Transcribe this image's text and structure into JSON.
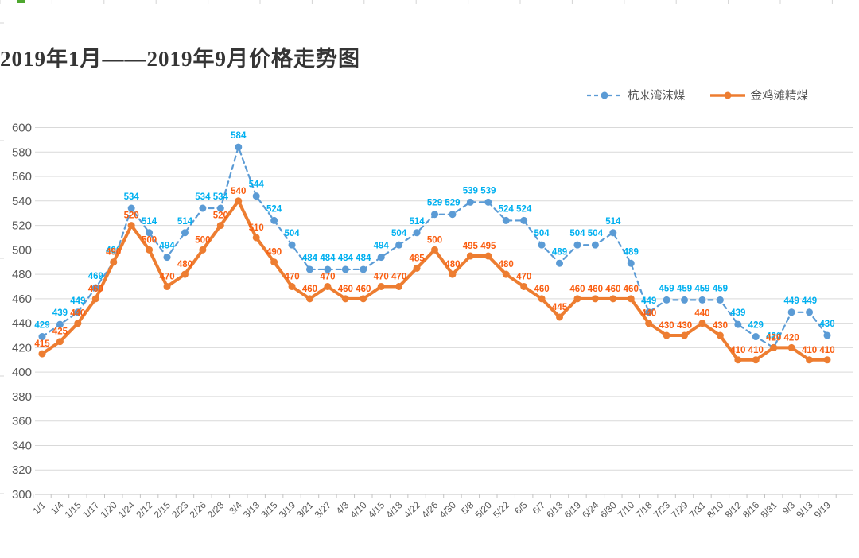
{
  "title": "2019年1月——2019年9月价格走势图",
  "legend": {
    "items": [
      {
        "label": "杭来湾沫煤",
        "color": "#5B9BD5",
        "style": "dashed"
      },
      {
        "label": "金鸡滩精煤",
        "color": "#ED7D31",
        "style": "solid"
      }
    ]
  },
  "chart_data": {
    "type": "line",
    "title": "2019年1月——2019年9月价格走势图",
    "xlabel": "",
    "ylabel": "",
    "ylim": [
      300,
      600
    ],
    "yticks": [
      600,
      580,
      560,
      540,
      520,
      500,
      480,
      460,
      440,
      420,
      400,
      380,
      360,
      340,
      320,
      300
    ],
    "grid": true,
    "legend_position": "top-right",
    "categories": [
      "1/1",
      "1/4",
      "1/15",
      "1/17",
      "1/20",
      "1/24",
      "2/12",
      "2/15",
      "2/23",
      "2/26",
      "2/28",
      "3/4",
      "3/13",
      "3/15",
      "3/19",
      "3/21",
      "3/27",
      "4/3",
      "4/10",
      "4/15",
      "4/18",
      "4/22",
      "4/26",
      "4/30",
      "5/8",
      "5/20",
      "5/22",
      "6/5",
      "6/7",
      "6/13",
      "6/19",
      "6/24",
      "6/30",
      "7/10",
      "7/18",
      "7/23",
      "7/29",
      "7/31",
      "8/10",
      "8/12",
      "8/16",
      "8/31",
      "9/3",
      "9/13",
      "9/19"
    ],
    "series": [
      {
        "name": "杭来湾沫煤",
        "line_style": "dashed",
        "color": "#5B9BD5",
        "label_color": "#00B0F0",
        "values": [
          429,
          439,
          449,
          469,
          490,
          534,
          514,
          494,
          514,
          534,
          534,
          584,
          544,
          524,
          504,
          484,
          484,
          484,
          484,
          494,
          504,
          514,
          529,
          529,
          539,
          539,
          524,
          524,
          504,
          489,
          504,
          504,
          514,
          489,
          449,
          459,
          459,
          459,
          459,
          439,
          429,
          420,
          449,
          449,
          430
        ]
      },
      {
        "name": "金鸡滩精煤",
        "line_style": "solid",
        "color": "#ED7D31",
        "label_color": "#FA5D0F",
        "values": [
          415,
          425,
          440,
          460,
          490,
          520,
          500,
          470,
          480,
          500,
          520,
          540,
          510,
          490,
          470,
          460,
          470,
          460,
          460,
          470,
          470,
          485,
          500,
          480,
          495,
          495,
          480,
          470,
          460,
          445,
          460,
          460,
          460,
          460,
          440,
          430,
          430,
          440,
          430,
          410,
          410,
          420,
          420,
          410,
          410
        ]
      }
    ]
  },
  "colors": {
    "gridline": "#D9D9D9",
    "axis": "#C3C3C3",
    "tick_label": "#595959",
    "worksheet_tick": "#D4D4D4",
    "selection_mark": "#4EA72E"
  }
}
